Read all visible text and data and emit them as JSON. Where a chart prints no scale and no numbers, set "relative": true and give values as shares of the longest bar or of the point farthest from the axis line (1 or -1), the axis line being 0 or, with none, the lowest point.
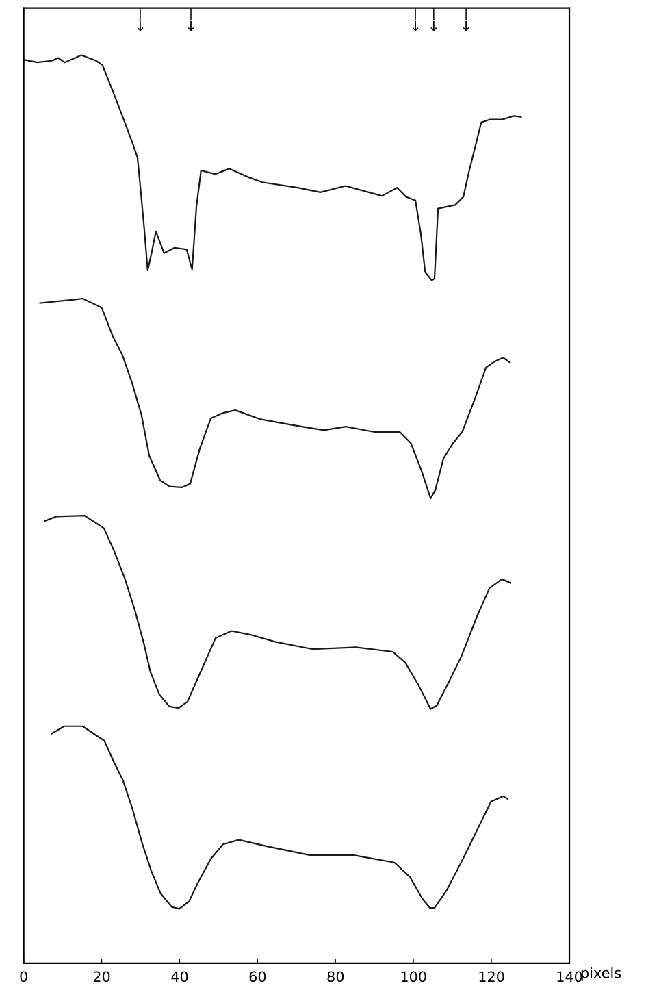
{
  "chart_data": {
    "type": "line",
    "relative": true,
    "xlabel": "pixels",
    "xlim": [
      0,
      140
    ],
    "xticks": [
      0,
      20,
      40,
      60,
      80,
      100,
      120,
      140
    ],
    "tick_labels": "x",
    "grid": false,
    "marker": "none",
    "line_style": "solid",
    "ref_lines": [
      {
        "axis": "x",
        "value": 29.9,
        "label": "↓"
      },
      {
        "axis": "x",
        "value": 42.9,
        "label": "↓"
      },
      {
        "axis": "x",
        "value": 100.5,
        "label": "↓"
      },
      {
        "axis": "x",
        "value": 105.2,
        "label": "↓"
      },
      {
        "axis": "x",
        "value": 113.5,
        "label": "↓"
      }
    ],
    "series": [
      {
        "color": "#1a1a1a",
        "x": [
          0,
          3.5,
          7.4,
          8.8,
          10.5,
          14.8,
          18.5,
          20.2,
          22.8,
          25.5,
          28.1,
          29.2,
          29.9,
          30.9,
          31.8,
          32.9,
          33.9,
          36.0,
          38.7,
          41.8,
          43.2,
          44.3,
          45.5,
          49.2,
          52.7,
          58.0,
          61.2,
          70.3,
          76.1,
          82.6,
          91.9,
          95.8,
          98.1,
          100.5,
          101.9,
          103.0,
          104.7,
          105.4,
          106.3,
          110.7,
          112.8,
          114.2,
          117.4,
          119.5,
          122.7,
          125.7,
          127.6
        ],
        "values": [
          0.995,
          0.992,
          0.994,
          0.997,
          0.992,
          1.0,
          0.994,
          0.989,
          0.961,
          0.931,
          0.901,
          0.887,
          0.856,
          0.81,
          0.763,
          0.784,
          0.806,
          0.782,
          0.788,
          0.786,
          0.764,
          0.833,
          0.873,
          0.869,
          0.875,
          0.865,
          0.86,
          0.854,
          0.849,
          0.856,
          0.845,
          0.854,
          0.844,
          0.84,
          0.803,
          0.761,
          0.752,
          0.754,
          0.831,
          0.835,
          0.844,
          0.871,
          0.926,
          0.929,
          0.929,
          0.933,
          0.932
        ]
      },
      {
        "color": "#1a1a1a",
        "x": [
          4.2,
          13.2,
          15.1,
          20.0,
          22.8,
          25.3,
          27.8,
          30.2,
          32.2,
          35.0,
          37.4,
          40.6,
          42.7,
          45.2,
          48.0,
          51.1,
          54.3,
          60.8,
          67.3,
          71.4,
          77.0,
          82.6,
          90.0,
          96.5,
          99.3,
          102.1,
          104.4,
          105.6,
          107.7,
          110.2,
          112.5,
          115.8,
          118.6,
          120.6,
          123.0,
          124.6
        ],
        "values": [
          0.727,
          0.731,
          0.732,
          0.722,
          0.691,
          0.67,
          0.639,
          0.604,
          0.559,
          0.532,
          0.525,
          0.524,
          0.528,
          0.567,
          0.6,
          0.606,
          0.609,
          0.599,
          0.594,
          0.591,
          0.587,
          0.591,
          0.585,
          0.585,
          0.573,
          0.542,
          0.512,
          0.521,
          0.556,
          0.573,
          0.585,
          0.622,
          0.656,
          0.662,
          0.667,
          0.662
        ]
      },
      {
        "color": "#1a1a1a",
        "x": [
          5.4,
          8.4,
          15.6,
          20.6,
          23.2,
          26.0,
          28.5,
          30.9,
          32.5,
          34.8,
          37.3,
          39.7,
          42.0,
          45.7,
          49.2,
          53.3,
          58.0,
          64.5,
          74.0,
          85.2,
          94.7,
          97.9,
          101.2,
          104.4,
          106.0,
          109.1,
          112.3,
          116.3,
          119.5,
          122.7,
          124.8
        ],
        "values": [
          0.487,
          0.492,
          0.493,
          0.479,
          0.454,
          0.423,
          0.389,
          0.351,
          0.321,
          0.296,
          0.283,
          0.281,
          0.288,
          0.324,
          0.358,
          0.366,
          0.362,
          0.354,
          0.346,
          0.348,
          0.343,
          0.331,
          0.307,
          0.28,
          0.284,
          0.31,
          0.338,
          0.382,
          0.413,
          0.423,
          0.419
        ]
      },
      {
        "color": "#1a1a1a",
        "x": [
          7.2,
          10.4,
          15.1,
          20.7,
          23.2,
          25.5,
          27.9,
          30.4,
          32.7,
          35.1,
          38.0,
          39.9,
          42.4,
          44.6,
          48.0,
          51.1,
          55.2,
          62.2,
          73.5,
          84.7,
          95.1,
          99.1,
          102.3,
          104.2,
          105.4,
          108.6,
          112.7,
          116.7,
          119.9,
          123.0,
          124.2
        ],
        "values": [
          0.253,
          0.261,
          0.261,
          0.245,
          0.221,
          0.201,
          0.17,
          0.132,
          0.102,
          0.077,
          0.062,
          0.06,
          0.068,
          0.088,
          0.115,
          0.131,
          0.136,
          0.129,
          0.119,
          0.119,
          0.111,
          0.095,
          0.071,
          0.061,
          0.061,
          0.081,
          0.115,
          0.15,
          0.178,
          0.184,
          0.181
        ]
      }
    ]
  }
}
